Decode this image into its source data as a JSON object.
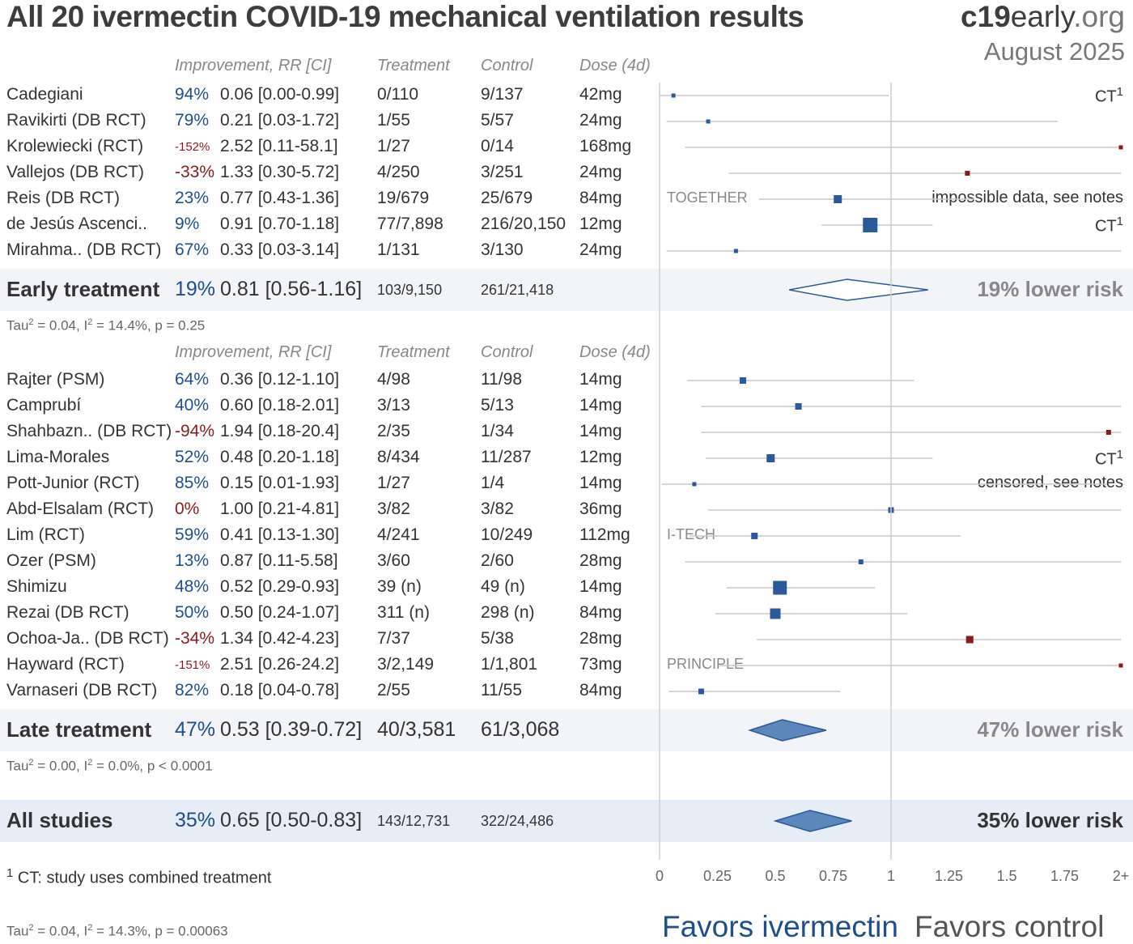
{
  "header": {
    "title": "All 20 ivermectin COVID-19 mechanical ventilation results",
    "brand_bold": "c19",
    "brand_mid": "early",
    "brand_org": ".org",
    "date": "August 2025"
  },
  "columns": {
    "improvement": "Improvement, RR [CI]",
    "treatment": "Treatment",
    "control": "Control",
    "dose": "Dose (4d)"
  },
  "chart_data": {
    "type": "forest",
    "x_axis": {
      "ticks": [
        "0",
        "0.25",
        "0.5",
        "0.75",
        "1",
        "1.25",
        "1.5",
        "1.75",
        "2+"
      ],
      "xlim": [
        0,
        2
      ],
      "reference_line": 1
    },
    "favors_left": "Favors ivermectin",
    "favors_right": "Favors control",
    "groups": [
      {
        "name": "Early treatment",
        "studies": [
          {
            "name": "Cadegiani",
            "imp": "94%",
            "rr": 0.06,
            "lo": 0.0,
            "hi": 0.99,
            "rr_text": "0.06 [0.00-0.99]",
            "treatment": "0/110",
            "control": "9/137",
            "dose": "42mg",
            "note": "CT",
            "note_sup": "1",
            "label": "",
            "dir": "pos",
            "size": 5
          },
          {
            "name": "Ravikirti (DB RCT)",
            "imp": "79%",
            "rr": 0.21,
            "lo": 0.03,
            "hi": 1.72,
            "rr_text": "0.21 [0.03-1.72]",
            "treatment": "1/55",
            "control": "5/57",
            "dose": "24mg",
            "note": "",
            "note_sup": "",
            "label": "",
            "dir": "pos",
            "size": 5
          },
          {
            "name": "Krolewiecki (RCT)",
            "imp": "-152%",
            "rr": 2.52,
            "lo": 0.11,
            "hi": 58.1,
            "rr_text": "2.52 [0.11-58.1]",
            "treatment": "1/27",
            "control": "0/14",
            "dose": "168mg",
            "note": "",
            "note_sup": "",
            "label": "",
            "dir": "neg",
            "size": 5,
            "small_imp": true
          },
          {
            "name": "Vallejos (DB RCT)",
            "imp": "-33%",
            "rr": 1.33,
            "lo": 0.3,
            "hi": 5.72,
            "rr_text": "1.33 [0.30-5.72]",
            "treatment": "4/250",
            "control": "3/251",
            "dose": "24mg",
            "note": "",
            "note_sup": "",
            "label": "",
            "dir": "neg",
            "size": 6
          },
          {
            "name": "Reis (DB RCT)",
            "imp": "23%",
            "rr": 0.77,
            "lo": 0.43,
            "hi": 1.36,
            "rr_text": "0.77 [0.43-1.36]",
            "treatment": "19/679",
            "control": "25/679",
            "dose": "84mg",
            "note": "impossible data, see notes",
            "note_sup": "",
            "label": "TOGETHER",
            "dir": "pos",
            "size": 10
          },
          {
            "name": "de Jesús Ascenci..",
            "imp": "9%",
            "rr": 0.91,
            "lo": 0.7,
            "hi": 1.18,
            "rr_text": "0.91 [0.70-1.18]",
            "treatment": "77/7,898",
            "control": "216/20,150",
            "dose": "12mg",
            "note": "CT",
            "note_sup": "1",
            "label": "",
            "dir": "pos",
            "size": 18
          },
          {
            "name": "Mirahma.. (DB RCT)",
            "imp": "67%",
            "rr": 0.33,
            "lo": 0.03,
            "hi": 3.14,
            "rr_text": "0.33 [0.03-3.14]",
            "treatment": "1/131",
            "control": "3/130",
            "dose": "24mg",
            "note": "",
            "note_sup": "",
            "label": "",
            "dir": "pos",
            "size": 5
          }
        ],
        "summary": {
          "imp": "19%",
          "rr": 0.81,
          "lo": 0.56,
          "hi": 1.16,
          "rr_text": "0.81 [0.56-1.16]",
          "treatment": "103/9,150",
          "control": "261/21,418",
          "risk": "19% lower risk",
          "filled": false,
          "stat_tau": "Tau",
          "stat_sup1": "2",
          "stat_mid": " = 0.04, I",
          "stat_sup2": "2",
          "stat_end": " = 14.4%, p = 0.25"
        }
      },
      {
        "name": "Late treatment",
        "studies": [
          {
            "name": "Rajter (PSM)",
            "imp": "64%",
            "rr": 0.36,
            "lo": 0.12,
            "hi": 1.1,
            "rr_text": "0.36 [0.12-1.10]",
            "treatment": "4/98",
            "control": "11/98",
            "dose": "14mg",
            "note": "",
            "note_sup": "",
            "label": "",
            "dir": "pos",
            "size": 8
          },
          {
            "name": "Camprubí",
            "imp": "40%",
            "rr": 0.6,
            "lo": 0.18,
            "hi": 2.01,
            "rr_text": "0.60 [0.18-2.01]",
            "treatment": "3/13",
            "control": "5/13",
            "dose": "14mg",
            "note": "",
            "note_sup": "",
            "label": "",
            "dir": "pos",
            "size": 8
          },
          {
            "name": "Shahbazn.. (DB RCT)",
            "imp": "-94%",
            "rr": 1.94,
            "lo": 0.18,
            "hi": 20.4,
            "rr_text": "1.94 [0.18-20.4]",
            "treatment": "2/35",
            "control": "1/34",
            "dose": "14mg",
            "note": "",
            "note_sup": "",
            "label": "",
            "dir": "neg",
            "size": 6
          },
          {
            "name": "Lima-Morales",
            "imp": "52%",
            "rr": 0.48,
            "lo": 0.2,
            "hi": 1.18,
            "rr_text": "0.48 [0.20-1.18]",
            "treatment": "8/434",
            "control": "11/287",
            "dose": "12mg",
            "note": "CT",
            "note_sup": "1",
            "label": "",
            "dir": "pos",
            "size": 10
          },
          {
            "name": "Pott-Junior (RCT)",
            "imp": "85%",
            "rr": 0.15,
            "lo": 0.01,
            "hi": 1.93,
            "rr_text": "0.15 [0.01-1.93]",
            "treatment": "1/27",
            "control": "1/4",
            "dose": "14mg",
            "note": "censored, see notes",
            "note_sup": "",
            "label": "",
            "dir": "pos",
            "size": 5
          },
          {
            "name": "Abd-Elsalam (RCT)",
            "imp": "0%",
            "rr": 1.0,
            "lo": 0.21,
            "hi": 4.81,
            "rr_text": "1.00 [0.21-4.81]",
            "treatment": "3/82",
            "control": "3/82",
            "dose": "36mg",
            "note": "",
            "note_sup": "",
            "label": "",
            "dir": "neg",
            "size": 7
          },
          {
            "name": "Lim (RCT)",
            "imp": "59%",
            "rr": 0.41,
            "lo": 0.13,
            "hi": 1.3,
            "rr_text": "0.41 [0.13-1.30]",
            "treatment": "4/241",
            "control": "10/249",
            "dose": "112mg",
            "note": "",
            "note_sup": "",
            "label": "I-TECH",
            "dir": "pos",
            "size": 8
          },
          {
            "name": "Ozer (PSM)",
            "imp": "13%",
            "rr": 0.87,
            "lo": 0.11,
            "hi": 5.58,
            "rr_text": "0.87 [0.11-5.58]",
            "treatment": "3/60",
            "control": "2/60",
            "dose": "28mg",
            "note": "",
            "note_sup": "",
            "label": "",
            "dir": "pos",
            "size": 6
          },
          {
            "name": "Shimizu",
            "imp": "48%",
            "rr": 0.52,
            "lo": 0.29,
            "hi": 0.93,
            "rr_text": "0.52 [0.29-0.93]",
            "treatment": "39 (n)",
            "control": "49 (n)",
            "dose": "14mg",
            "note": "",
            "note_sup": "",
            "label": "",
            "dir": "pos",
            "size": 17
          },
          {
            "name": "Rezai (DB RCT)",
            "imp": "50%",
            "rr": 0.5,
            "lo": 0.24,
            "hi": 1.07,
            "rr_text": "0.50 [0.24-1.07]",
            "treatment": "311 (n)",
            "control": "298 (n)",
            "dose": "84mg",
            "note": "",
            "note_sup": "",
            "label": "",
            "dir": "pos",
            "size": 13
          },
          {
            "name": "Ochoa-Ja.. (DB RCT)",
            "imp": "-34%",
            "rr": 1.34,
            "lo": 0.42,
            "hi": 4.23,
            "rr_text": "1.34 [0.42-4.23]",
            "treatment": "7/37",
            "control": "5/38",
            "dose": "28mg",
            "note": "",
            "note_sup": "",
            "label": "",
            "dir": "neg",
            "size": 9
          },
          {
            "name": "Hayward (RCT)",
            "imp": "-151%",
            "rr": 2.51,
            "lo": 0.26,
            "hi": 24.2,
            "rr_text": "2.51 [0.26-24.2]",
            "treatment": "3/2,149",
            "control": "1/1,801",
            "dose": "73mg",
            "note": "",
            "note_sup": "",
            "label": "PRINCIPLE",
            "dir": "neg",
            "size": 5,
            "small_imp": true
          },
          {
            "name": "Varnaseri (DB RCT)",
            "imp": "82%",
            "rr": 0.18,
            "lo": 0.04,
            "hi": 0.78,
            "rr_text": "0.18 [0.04-0.78]",
            "treatment": "2/55",
            "control": "11/55",
            "dose": "84mg",
            "note": "",
            "note_sup": "",
            "label": "",
            "dir": "pos",
            "size": 7
          }
        ],
        "summary": {
          "imp": "47%",
          "rr": 0.53,
          "lo": 0.39,
          "hi": 0.72,
          "rr_text": "0.53 [0.39-0.72]",
          "treatment": "40/3,581",
          "control": "61/3,068",
          "risk": "47% lower risk",
          "filled": true,
          "stat_tau": "Tau",
          "stat_sup1": "2",
          "stat_mid": " = 0.00, I",
          "stat_sup2": "2",
          "stat_end": " = 0.0%, p < 0.0001"
        }
      }
    ],
    "overall": {
      "name": "All studies",
      "imp": "35%",
      "rr": 0.65,
      "lo": 0.5,
      "hi": 0.83,
      "rr_text": "0.65 [0.50-0.83]",
      "treatment": "143/12,731",
      "control": "322/24,486",
      "risk": "35% lower risk",
      "filled": true,
      "stat_tau": "Tau",
      "stat_sup1": "2",
      "stat_mid": " = 0.04, I",
      "stat_sup2": "2",
      "stat_end": " = 14.3%, p = 0.00063"
    },
    "footnote_sup": "1",
    "footnote": " CT: study uses combined treatment"
  },
  "colors": {
    "positive": "#1f4e8c",
    "negative": "#8b1a1a",
    "square": "#2a5a9a",
    "square_neg": "#8b1a1a",
    "diamond_fill": "#5b87bd",
    "line": "#c8c8c8"
  }
}
